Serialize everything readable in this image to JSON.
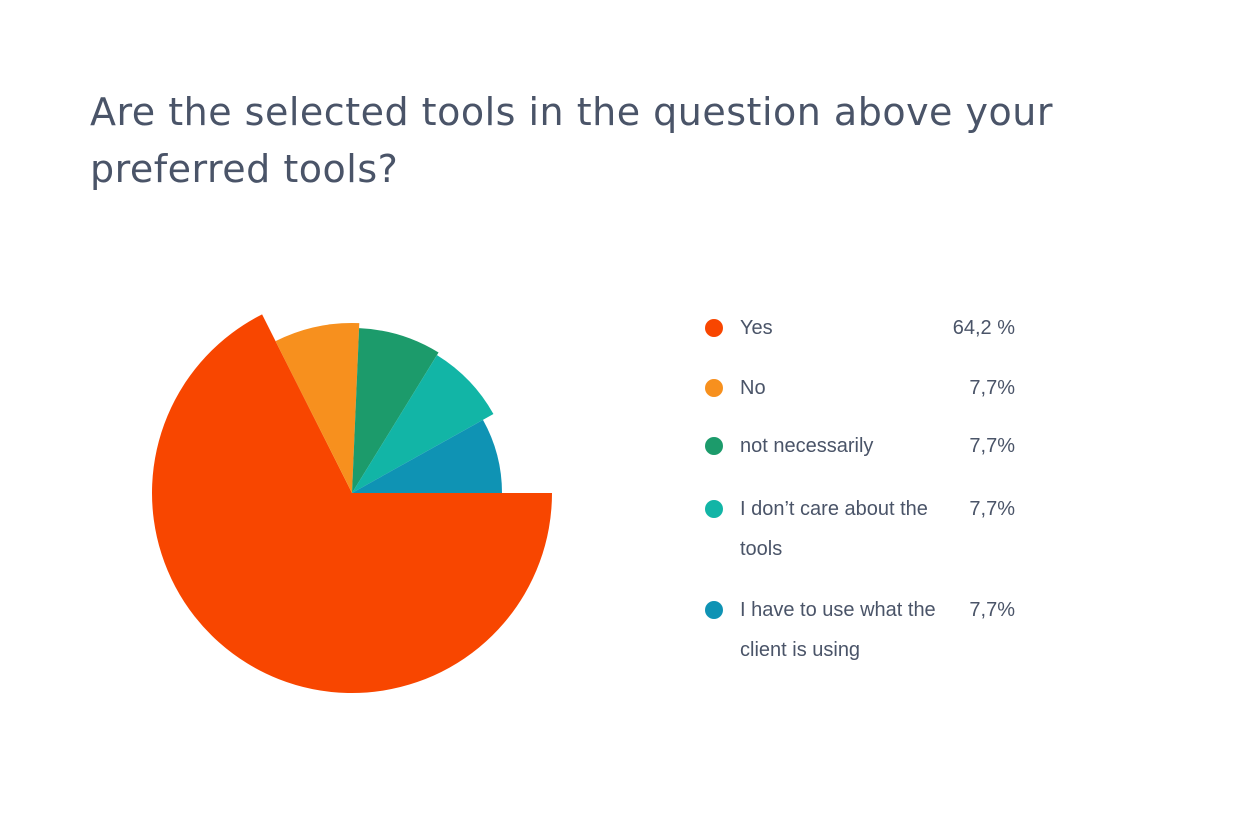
{
  "chart_data": {
    "type": "pie",
    "title": "Are the selected tools in the question above your preferred tools?",
    "slices": [
      {
        "label": "Yes",
        "value": 64.2,
        "value_label": "64,2 %",
        "color": "#f84600"
      },
      {
        "label": "No",
        "value": 7.7,
        "value_label": "7,7%",
        "color": "#f7901e"
      },
      {
        "label": "not necessarily",
        "value": 7.7,
        "value_label": "7,7%",
        "color": "#1c9b6b"
      },
      {
        "label": "I don’t care about the tools",
        "value": 7.7,
        "value_label": "7,7%",
        "color": "#12b5a6"
      },
      {
        "label": "I have to use what the client is using",
        "value": 7.7,
        "value_label": "7,7%",
        "color": "#0f93b4"
      }
    ],
    "legend_position": "right"
  }
}
